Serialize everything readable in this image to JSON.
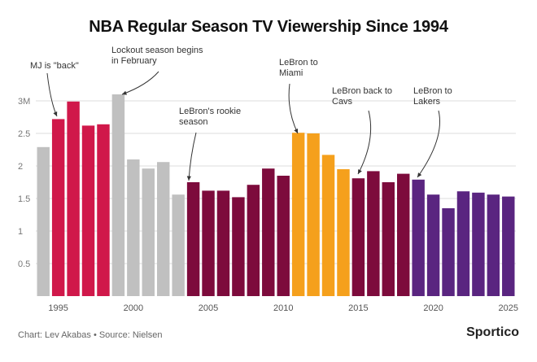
{
  "header": {
    "title": "NBA Regular Season TV Viewership Since 1994"
  },
  "footer": {
    "credit": "Chart: Lev Akabas • Source: Nielsen",
    "logo": "Sportico"
  },
  "chart_data": {
    "type": "bar",
    "title": "NBA Regular Season TV Viewership Since 1994",
    "xlabel": "",
    "ylabel": "",
    "x_ticks": [
      1995,
      2000,
      2005,
      2010,
      2015,
      2020,
      2025
    ],
    "y_ticks": [
      {
        "value": 0.5,
        "label": "0.5"
      },
      {
        "value": 1,
        "label": "1"
      },
      {
        "value": 1.5,
        "label": "1.5"
      },
      {
        "value": 2,
        "label": "2"
      },
      {
        "value": 2.5,
        "label": "2.5"
      },
      {
        "value": 3,
        "label": "3M"
      }
    ],
    "ylim": [
      0,
      3.3
    ],
    "grid": true,
    "colors": {
      "gray": "#c0c0c0",
      "crimson": "#d0184a",
      "maroon": "#7d0b3c",
      "orange": "#f5a01c",
      "purple": "#5a2580",
      "grid": "#dddddd",
      "tick_label": "#777777",
      "annotation": "#333333"
    },
    "bars": [
      {
        "year": 1994,
        "value": 2.29,
        "color": "gray"
      },
      {
        "year": 1995,
        "value": 2.72,
        "color": "crimson"
      },
      {
        "year": 1996,
        "value": 2.99,
        "color": "crimson"
      },
      {
        "year": 1997,
        "value": 2.62,
        "color": "crimson"
      },
      {
        "year": 1998,
        "value": 2.64,
        "color": "crimson"
      },
      {
        "year": 1999,
        "value": 3.1,
        "color": "gray"
      },
      {
        "year": 2000,
        "value": 2.1,
        "color": "gray"
      },
      {
        "year": 2001,
        "value": 1.96,
        "color": "gray"
      },
      {
        "year": 2002,
        "value": 2.06,
        "color": "gray"
      },
      {
        "year": 2003,
        "value": 1.56,
        "color": "gray"
      },
      {
        "year": 2004,
        "value": 1.75,
        "color": "maroon"
      },
      {
        "year": 2005,
        "value": 1.62,
        "color": "maroon"
      },
      {
        "year": 2006,
        "value": 1.62,
        "color": "maroon"
      },
      {
        "year": 2007,
        "value": 1.52,
        "color": "maroon"
      },
      {
        "year": 2008,
        "value": 1.71,
        "color": "maroon"
      },
      {
        "year": 2009,
        "value": 1.96,
        "color": "maroon"
      },
      {
        "year": 2010,
        "value": 1.85,
        "color": "maroon"
      },
      {
        "year": 2011,
        "value": 2.51,
        "color": "orange"
      },
      {
        "year": 2012,
        "value": 2.5,
        "color": "orange"
      },
      {
        "year": 2013,
        "value": 2.17,
        "color": "orange"
      },
      {
        "year": 2014,
        "value": 1.95,
        "color": "orange"
      },
      {
        "year": 2015,
        "value": 1.81,
        "color": "maroon"
      },
      {
        "year": 2016,
        "value": 1.92,
        "color": "maroon"
      },
      {
        "year": 2017,
        "value": 1.75,
        "color": "maroon"
      },
      {
        "year": 2018,
        "value": 1.88,
        "color": "maroon"
      },
      {
        "year": 2019,
        "value": 1.79,
        "color": "purple"
      },
      {
        "year": 2020,
        "value": 1.56,
        "color": "purple"
      },
      {
        "year": 2021,
        "value": 1.35,
        "color": "purple"
      },
      {
        "year": 2022,
        "value": 1.61,
        "color": "purple"
      },
      {
        "year": 2023,
        "value": 1.59,
        "color": "purple"
      },
      {
        "year": 2024,
        "value": 1.56,
        "color": "purple"
      },
      {
        "year": 2025,
        "value": 1.53,
        "color": "purple"
      }
    ],
    "annotations": [
      {
        "name": "mj-back",
        "text": "MJ is \"back\"",
        "target_year": 1995
      },
      {
        "name": "lockout",
        "text": "Lockout season begins\nin February",
        "target_year": 1999
      },
      {
        "name": "lebron-rookie",
        "text": "LeBron's rookie\nseason",
        "target_year": 2004
      },
      {
        "name": "lebron-miami",
        "text": "LeBron to\nMiami",
        "target_year": 2011
      },
      {
        "name": "lebron-cavs",
        "text": "LeBron back to\nCavs",
        "target_year": 2015
      },
      {
        "name": "lebron-lakers",
        "text": "LeBron to\nLakers",
        "target_year": 2019
      }
    ]
  }
}
